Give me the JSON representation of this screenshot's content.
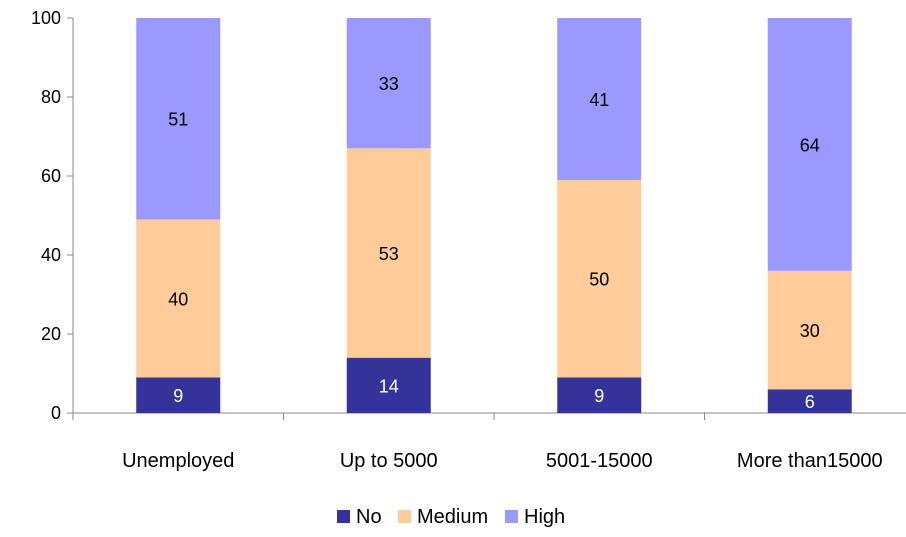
{
  "chart_data": {
    "type": "bar",
    "stacked": true,
    "categories": [
      "Unemployed",
      "Up to 5000",
      "5001-15000",
      "More than15000"
    ],
    "series": [
      {
        "name": "No",
        "values": [
          9,
          14,
          9,
          6
        ],
        "color": "#333399",
        "label_color": "#ffffff"
      },
      {
        "name": "Medium",
        "values": [
          40,
          53,
          50,
          30
        ],
        "color": "#ffcc99",
        "label_color": "#000000"
      },
      {
        "name": "High",
        "values": [
          51,
          33,
          41,
          64
        ],
        "color": "#9999ff",
        "label_color": "#000000"
      }
    ],
    "ylim": [
      0,
      100
    ],
    "yticks": [
      0,
      20,
      40,
      60,
      80,
      100
    ],
    "grid": false,
    "legend_position": "bottom"
  }
}
